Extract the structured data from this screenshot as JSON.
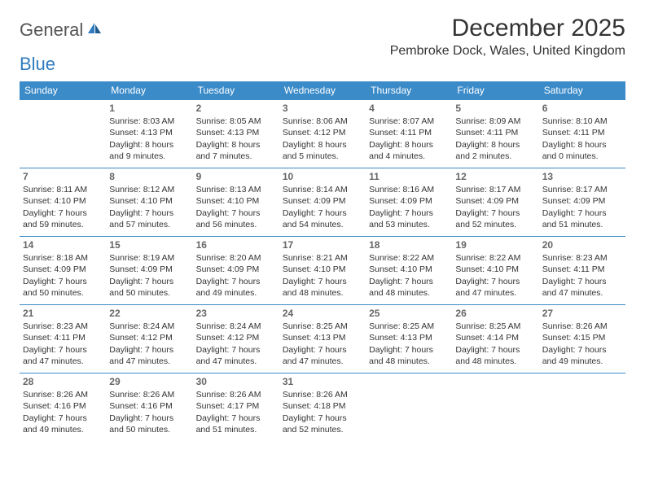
{
  "brand": {
    "part1": "General",
    "part2": "Blue"
  },
  "title": "December 2025",
  "location": "Pembroke Dock, Wales, United Kingdom",
  "colors": {
    "header_bg": "#3b8bc9",
    "header_text": "#ffffff",
    "cell_border": "#3b8bc9",
    "text": "#333333",
    "daynum": "#666666",
    "brand_gray": "#555555",
    "brand_blue": "#2f7bbf",
    "background": "#ffffff"
  },
  "day_headers": [
    "Sunday",
    "Monday",
    "Tuesday",
    "Wednesday",
    "Thursday",
    "Friday",
    "Saturday"
  ],
  "weeks": [
    [
      null,
      {
        "n": "1",
        "sr": "8:03 AM",
        "ss": "4:13 PM",
        "dl": "8 hours and 9 minutes."
      },
      {
        "n": "2",
        "sr": "8:05 AM",
        "ss": "4:13 PM",
        "dl": "8 hours and 7 minutes."
      },
      {
        "n": "3",
        "sr": "8:06 AM",
        "ss": "4:12 PM",
        "dl": "8 hours and 5 minutes."
      },
      {
        "n": "4",
        "sr": "8:07 AM",
        "ss": "4:11 PM",
        "dl": "8 hours and 4 minutes."
      },
      {
        "n": "5",
        "sr": "8:09 AM",
        "ss": "4:11 PM",
        "dl": "8 hours and 2 minutes."
      },
      {
        "n": "6",
        "sr": "8:10 AM",
        "ss": "4:11 PM",
        "dl": "8 hours and 0 minutes."
      }
    ],
    [
      {
        "n": "7",
        "sr": "8:11 AM",
        "ss": "4:10 PM",
        "dl": "7 hours and 59 minutes."
      },
      {
        "n": "8",
        "sr": "8:12 AM",
        "ss": "4:10 PM",
        "dl": "7 hours and 57 minutes."
      },
      {
        "n": "9",
        "sr": "8:13 AM",
        "ss": "4:10 PM",
        "dl": "7 hours and 56 minutes."
      },
      {
        "n": "10",
        "sr": "8:14 AM",
        "ss": "4:09 PM",
        "dl": "7 hours and 54 minutes."
      },
      {
        "n": "11",
        "sr": "8:16 AM",
        "ss": "4:09 PM",
        "dl": "7 hours and 53 minutes."
      },
      {
        "n": "12",
        "sr": "8:17 AM",
        "ss": "4:09 PM",
        "dl": "7 hours and 52 minutes."
      },
      {
        "n": "13",
        "sr": "8:17 AM",
        "ss": "4:09 PM",
        "dl": "7 hours and 51 minutes."
      }
    ],
    [
      {
        "n": "14",
        "sr": "8:18 AM",
        "ss": "4:09 PM",
        "dl": "7 hours and 50 minutes."
      },
      {
        "n": "15",
        "sr": "8:19 AM",
        "ss": "4:09 PM",
        "dl": "7 hours and 50 minutes."
      },
      {
        "n": "16",
        "sr": "8:20 AM",
        "ss": "4:09 PM",
        "dl": "7 hours and 49 minutes."
      },
      {
        "n": "17",
        "sr": "8:21 AM",
        "ss": "4:10 PM",
        "dl": "7 hours and 48 minutes."
      },
      {
        "n": "18",
        "sr": "8:22 AM",
        "ss": "4:10 PM",
        "dl": "7 hours and 48 minutes."
      },
      {
        "n": "19",
        "sr": "8:22 AM",
        "ss": "4:10 PM",
        "dl": "7 hours and 47 minutes."
      },
      {
        "n": "20",
        "sr": "8:23 AM",
        "ss": "4:11 PM",
        "dl": "7 hours and 47 minutes."
      }
    ],
    [
      {
        "n": "21",
        "sr": "8:23 AM",
        "ss": "4:11 PM",
        "dl": "7 hours and 47 minutes."
      },
      {
        "n": "22",
        "sr": "8:24 AM",
        "ss": "4:12 PM",
        "dl": "7 hours and 47 minutes."
      },
      {
        "n": "23",
        "sr": "8:24 AM",
        "ss": "4:12 PM",
        "dl": "7 hours and 47 minutes."
      },
      {
        "n": "24",
        "sr": "8:25 AM",
        "ss": "4:13 PM",
        "dl": "7 hours and 47 minutes."
      },
      {
        "n": "25",
        "sr": "8:25 AM",
        "ss": "4:13 PM",
        "dl": "7 hours and 48 minutes."
      },
      {
        "n": "26",
        "sr": "8:25 AM",
        "ss": "4:14 PM",
        "dl": "7 hours and 48 minutes."
      },
      {
        "n": "27",
        "sr": "8:26 AM",
        "ss": "4:15 PM",
        "dl": "7 hours and 49 minutes."
      }
    ],
    [
      {
        "n": "28",
        "sr": "8:26 AM",
        "ss": "4:16 PM",
        "dl": "7 hours and 49 minutes."
      },
      {
        "n": "29",
        "sr": "8:26 AM",
        "ss": "4:16 PM",
        "dl": "7 hours and 50 minutes."
      },
      {
        "n": "30",
        "sr": "8:26 AM",
        "ss": "4:17 PM",
        "dl": "7 hours and 51 minutes."
      },
      {
        "n": "31",
        "sr": "8:26 AM",
        "ss": "4:18 PM",
        "dl": "7 hours and 52 minutes."
      },
      null,
      null,
      null
    ]
  ],
  "labels": {
    "sunrise": "Sunrise: ",
    "sunset": "Sunset: ",
    "daylight": "Daylight: "
  }
}
